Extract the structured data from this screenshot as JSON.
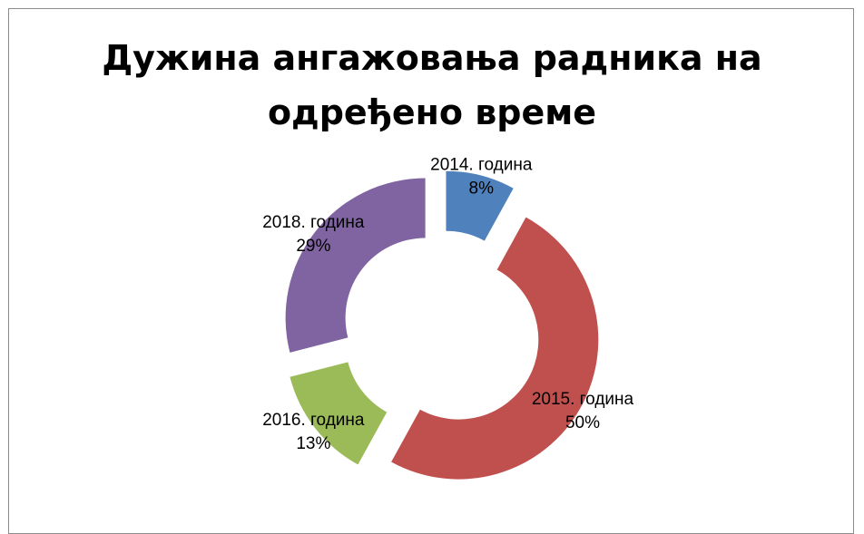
{
  "chart_data": {
    "type": "pie",
    "variant": "exploded-donut",
    "title_lines": [
      "Дужина ангажовања радника на",
      "одређено време"
    ],
    "legend": "none",
    "categories": [
      "2014. година",
      "2015. година",
      "2016. година",
      "2018. година"
    ],
    "values": [
      8,
      50,
      13,
      29
    ],
    "percent_labels": [
      "8%",
      "50%",
      "13%",
      "29%"
    ],
    "colors": [
      "#4f81bd",
      "#c0504d",
      "#9bbb59",
      "#8064a2"
    ]
  }
}
